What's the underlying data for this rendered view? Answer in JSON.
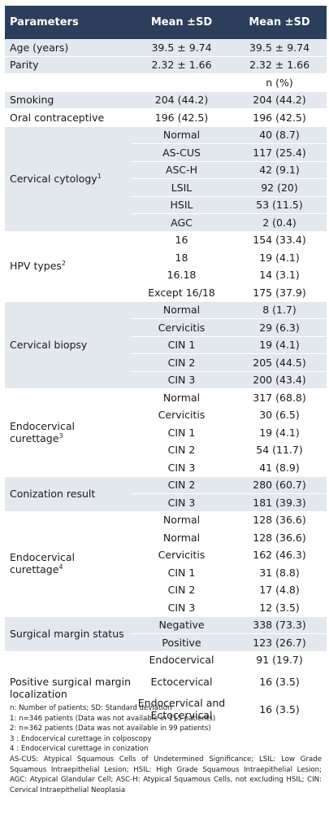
{
  "headers": [
    "Parameters",
    "Mean ±SD",
    "Mean ±SD"
  ],
  "rows": {
    "age": [
      "Age (years)",
      "39.5 ± 9.74",
      "39.5 ± 9.74"
    ],
    "parity": [
      "Parity",
      "2.32 ± 1.66",
      "2.32 ± 1.66"
    ],
    "n_pct": "n (%)",
    "smoking": [
      "Smoking",
      "204 (44.2)",
      "204 (44.2)"
    ],
    "oral": [
      "Oral contraceptive",
      "196 (42.5)",
      "196 (42.5)"
    ]
  },
  "groups": {
    "cytology": {
      "label": "Cervical cytology",
      "sup": "1",
      "items": [
        [
          "Normal",
          "40 (8.7)"
        ],
        [
          "AS-CUS",
          "117 (25.4)"
        ],
        [
          "ASC-H",
          "42 (9.1)"
        ],
        [
          "LSIL",
          "92 (20)"
        ],
        [
          "HSIL",
          "53 (11.5)"
        ],
        [
          "AGC",
          "2 (0.4)"
        ]
      ]
    },
    "hpv": {
      "label": "HPV types",
      "sup": "2",
      "items": [
        [
          "16",
          "154 (33.4)"
        ],
        [
          "18",
          "19 (4.1)"
        ],
        [
          "16.18",
          "14 (3.1)"
        ],
        [
          "Except 16/18",
          "175 (37.9)"
        ]
      ]
    },
    "biopsy": {
      "label": "Cervical biopsy",
      "sup": "",
      "items": [
        [
          "Normal",
          "8 (1.7)"
        ],
        [
          "Cervicitis",
          "29 (6.3)"
        ],
        [
          "CIN 1",
          "19 (4.1)"
        ],
        [
          "CIN 2",
          "205 (44.5)"
        ],
        [
          "CIN 3",
          "200 (43.4)"
        ]
      ]
    },
    "endo3": {
      "label": "Endocervical curettage",
      "sup": "3",
      "items": [
        [
          "Normal",
          "317 (68.8)"
        ],
        [
          "Cervicitis",
          "30 (6.5)"
        ],
        [
          "CIN 1",
          "19 (4.1)"
        ],
        [
          "CIN 2",
          "54 (11.7)"
        ],
        [
          "CIN 3",
          "41 (8.9)"
        ]
      ]
    },
    "coniz": {
      "label": "Conization result",
      "sup": "",
      "items": [
        [
          "CIN 2",
          "280 (60.7)"
        ],
        [
          "CIN 3",
          "181 (39.3)"
        ]
      ]
    },
    "endo4": {
      "label": "Endocervical curettage",
      "sup": "4",
      "items": [
        [
          "Normal",
          "128 (36.6)"
        ],
        [
          "Normal",
          "128 (36.6)"
        ],
        [
          "Cervicitis",
          "162 (46.3)"
        ],
        [
          "CIN 1",
          "31 (8.8)"
        ],
        [
          "CIN 2",
          "17 (4.8)"
        ],
        [
          "CIN 3",
          "12 (3.5)"
        ]
      ]
    },
    "margin": {
      "label": "Surgical margin status",
      "sup": "",
      "items": [
        [
          "Negative",
          "338 (73.3)"
        ],
        [
          "Positive",
          "123 (26.7)"
        ]
      ]
    },
    "posloc": {
      "label": "Positive surgical margin localization",
      "sup": "",
      "items": [
        [
          "Endocervical",
          "91 (19.7)"
        ],
        [
          "Ectocervical",
          "16 (3.5)"
        ],
        [
          "Endocervical and Ectocervical",
          "16 (3.5)"
        ]
      ]
    }
  },
  "notes": [
    "n: Number of patients; SD: Standard deviation",
    "1: n=346 patients (Data was not available in 115 patients)",
    "2: n=362 patients (Data was not available in 99 patients)",
    "3 : Endocervical curettage in colposcopy",
    "4 : Endocervical curettage in conization"
  ],
  "abbreviations": "AS-CUS: Atypical Squamous Cells of Undetermined Significance; LSIL: Low Grade Squamous Intraepithelial Lesion; HSIL: High Grade Squamous Intraepithelial Lesion; AGC: Atypical Glandular Cell; ASC-H: Atypical Squamous Cells, not excluding HSIL; CIN: Cervical Intraepithelial Neoplasia"
}
